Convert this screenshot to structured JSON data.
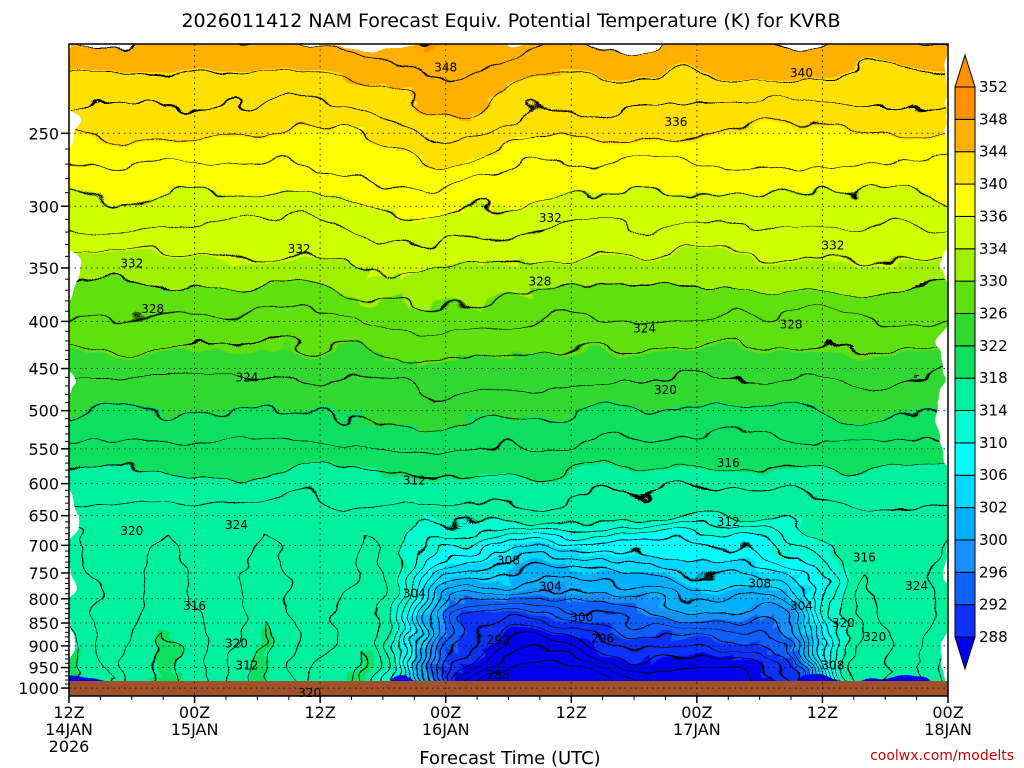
{
  "chart_data": {
    "type": "heatmap",
    "title": "2026011412 NAM Forecast Equiv. Potential Temperature (K) for KVRB",
    "xlabel": "Forecast Time (UTC)",
    "ylabel": "",
    "credit": "coolwx.com/modelts",
    "x_ticks": [
      {
        "hours": 0,
        "lines": [
          "12Z",
          "14JAN",
          "2026"
        ]
      },
      {
        "hours": 12,
        "lines": [
          "00Z",
          "15JAN"
        ]
      },
      {
        "hours": 24,
        "lines": [
          "12Z"
        ]
      },
      {
        "hours": 36,
        "lines": [
          "00Z",
          "16JAN"
        ]
      },
      {
        "hours": 48,
        "lines": [
          "12Z"
        ]
      },
      {
        "hours": 60,
        "lines": [
          "00Z",
          "17JAN"
        ]
      },
      {
        "hours": 72,
        "lines": [
          "12Z"
        ]
      },
      {
        "hours": 84,
        "lines": [
          "00Z",
          "18JAN"
        ]
      }
    ],
    "xlim": [
      0,
      84
    ],
    "y_ticks": [
      250,
      300,
      350,
      400,
      450,
      500,
      550,
      600,
      650,
      700,
      750,
      800,
      850,
      900,
      950,
      1000
    ],
    "ylim": [
      1020,
      200
    ],
    "y_scale": "log",
    "colorbar": {
      "levels": [
        288,
        292,
        296,
        300,
        302,
        306,
        310,
        314,
        318,
        322,
        326,
        330,
        334,
        336,
        340,
        344,
        348,
        352
      ],
      "colors": [
        "#0000f0",
        "#1030ff",
        "#1060ff",
        "#1890ff",
        "#00b0ff",
        "#00d8ff",
        "#00ffff",
        "#00ffd0",
        "#00f0a0",
        "#10e060",
        "#30d830",
        "#60e010",
        "#a0f000",
        "#d0ff00",
        "#ffff00",
        "#ffe000",
        "#ffb000",
        "#ff9000"
      ],
      "extend": "both"
    },
    "contour_labels": [
      {
        "value": "348",
        "hours": 36,
        "pressure": 212
      },
      {
        "value": "340",
        "hours": 70,
        "pressure": 215
      },
      {
        "value": "336",
        "hours": 58,
        "pressure": 243
      },
      {
        "value": "332",
        "hours": 46,
        "pressure": 309
      },
      {
        "value": "332",
        "hours": 22,
        "pressure": 334
      },
      {
        "value": "332",
        "hours": 6,
        "pressure": 346
      },
      {
        "value": "332",
        "hours": 73,
        "pressure": 331
      },
      {
        "value": "328",
        "hours": 45,
        "pressure": 362
      },
      {
        "value": "328",
        "hours": 8,
        "pressure": 388
      },
      {
        "value": "328",
        "hours": 69,
        "pressure": 403
      },
      {
        "value": "324",
        "hours": 55,
        "pressure": 407
      },
      {
        "value": "324",
        "hours": 17,
        "pressure": 460
      },
      {
        "value": "320",
        "hours": 57,
        "pressure": 475
      },
      {
        "value": "316",
        "hours": 63,
        "pressure": 570
      },
      {
        "value": "312",
        "hours": 33,
        "pressure": 595
      },
      {
        "value": "312",
        "hours": 63,
        "pressure": 660
      },
      {
        "value": "324",
        "hours": 16,
        "pressure": 665
      },
      {
        "value": "320",
        "hours": 6,
        "pressure": 675
      },
      {
        "value": "308",
        "hours": 42,
        "pressure": 727
      },
      {
        "value": "316",
        "hours": 76,
        "pressure": 722
      },
      {
        "value": "304",
        "hours": 46,
        "pressure": 776
      },
      {
        "value": "308",
        "hours": 66,
        "pressure": 770
      },
      {
        "value": "324",
        "hours": 81,
        "pressure": 775
      },
      {
        "value": "304",
        "hours": 33,
        "pressure": 790
      },
      {
        "value": "304",
        "hours": 70,
        "pressure": 815
      },
      {
        "value": "316",
        "hours": 12,
        "pressure": 815
      },
      {
        "value": "300",
        "hours": 49,
        "pressure": 838
      },
      {
        "value": "320",
        "hours": 74,
        "pressure": 850
      },
      {
        "value": "292",
        "hours": 41,
        "pressure": 887
      },
      {
        "value": "296",
        "hours": 51,
        "pressure": 883
      },
      {
        "value": "320",
        "hours": 77,
        "pressure": 880
      },
      {
        "value": "320",
        "hours": 16,
        "pressure": 895
      },
      {
        "value": "312",
        "hours": 17,
        "pressure": 945
      },
      {
        "value": "308",
        "hours": 73,
        "pressure": 945
      },
      {
        "value": "288",
        "hours": 41,
        "pressure": 968
      },
      {
        "value": "320",
        "hours": 23,
        "pressure": 1013
      }
    ]
  }
}
